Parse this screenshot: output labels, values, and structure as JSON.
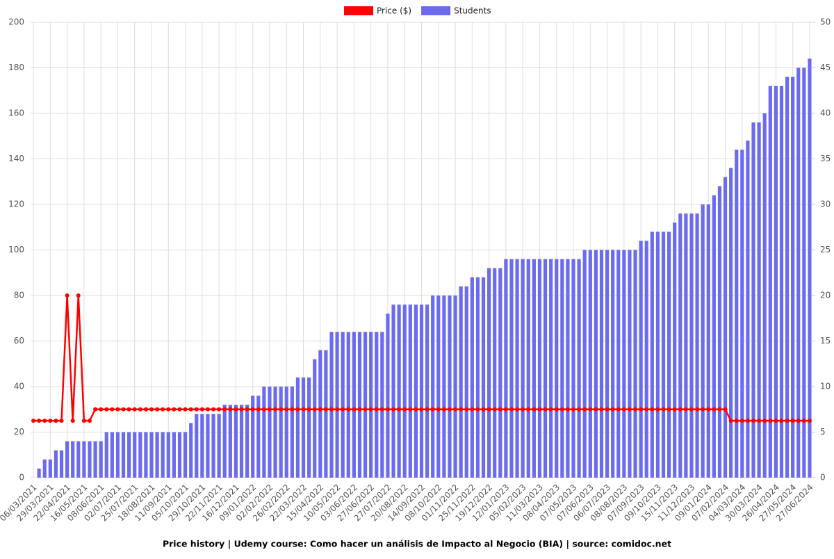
{
  "chart_data": {
    "type": "bar",
    "title": "Price history | Udemy course: Como hacer un análisis de Impacto al Negocio (BIA) | source: comidoc.net",
    "categories": [
      "06/03/2021",
      null,
      null,
      "29/03/2021",
      null,
      null,
      "22/04/2021",
      null,
      null,
      "16/05/2021",
      null,
      null,
      "08/06/2021",
      null,
      null,
      "02/07/2021",
      null,
      null,
      "25/07/2021",
      null,
      null,
      "18/08/2021",
      null,
      null,
      "11/09/2021",
      null,
      null,
      "05/10/2021",
      null,
      null,
      "29/10/2021",
      null,
      null,
      "22/11/2021",
      null,
      null,
      "16/12/2021",
      null,
      null,
      "09/01/2022",
      null,
      null,
      "02/02/2022",
      null,
      null,
      "26/02/2022",
      null,
      null,
      "22/03/2022",
      null,
      null,
      "15/04/2022",
      null,
      null,
      "10/05/2022",
      null,
      null,
      "03/06/2022",
      null,
      null,
      "27/06/2022",
      null,
      null,
      "27/07/2022",
      null,
      null,
      "20/08/2022",
      null,
      null,
      "14/09/2022",
      null,
      null,
      "08/10/2022",
      null,
      null,
      "01/11/2022",
      null,
      null,
      "25/11/2022",
      null,
      null,
      "19/12/2022",
      null,
      null,
      "12/01/2023",
      null,
      null,
      "05/02/2023",
      null,
      null,
      "11/03/2023",
      null,
      null,
      "08/04/2023",
      null,
      null,
      "07/05/2023",
      null,
      null,
      "07/06/2023",
      null,
      null,
      "06/07/2023",
      null,
      null,
      "08/08/2023",
      null,
      null,
      "07/09/2023",
      null,
      null,
      "09/10/2023",
      null,
      null,
      "15/11/2023",
      null,
      null,
      "11/12/2023",
      null,
      null,
      "09/01/2024",
      null,
      null,
      "07/02/2024",
      null,
      null,
      "04/03/2024",
      null,
      null,
      "30/03/2024",
      null,
      null,
      "26/04/2024",
      null,
      null,
      "27/05/2024",
      null,
      null,
      "27/06/2024"
    ],
    "series": [
      {
        "name": "Price ($)",
        "type": "line",
        "color": "#ff0000",
        "values": [
          25,
          25,
          25,
          25,
          25,
          25,
          80,
          25,
          80,
          25,
          25,
          30,
          30,
          30,
          30,
          30,
          30,
          30,
          30,
          30,
          30,
          30,
          30,
          30,
          30,
          30,
          30,
          30,
          30,
          30,
          30,
          30,
          30,
          30,
          30,
          30,
          30,
          30,
          30,
          30,
          30,
          30,
          30,
          30,
          30,
          30,
          30,
          30,
          30,
          30,
          30,
          30,
          30,
          30,
          30,
          30,
          30,
          30,
          30,
          30,
          30,
          30,
          30,
          30,
          30,
          30,
          30,
          30,
          30,
          30,
          30,
          30,
          30,
          30,
          30,
          30,
          30,
          30,
          30,
          30,
          30,
          30,
          30,
          30,
          30,
          30,
          30,
          30,
          30,
          30,
          30,
          30,
          30,
          30,
          30,
          30,
          30,
          30,
          30,
          30,
          30,
          30,
          30,
          30,
          30,
          30,
          30,
          30,
          30,
          30,
          30,
          30,
          30,
          30,
          30,
          30,
          30,
          30,
          30,
          30,
          30,
          30,
          30,
          30,
          25,
          25,
          25,
          25,
          25,
          25,
          25,
          25,
          25,
          25,
          25,
          25,
          25,
          25,
          25
        ]
      },
      {
        "name": "Students",
        "type": "bar",
        "axis": "y2",
        "color": "#6b6bef",
        "values": [
          0,
          1,
          2,
          2,
          3,
          3,
          4,
          4,
          4,
          4,
          4,
          4,
          4,
          5,
          5,
          5,
          5,
          5,
          5,
          5,
          5,
          5,
          5,
          5,
          5,
          5,
          5,
          5,
          6,
          7,
          7,
          7,
          7,
          7,
          8,
          8,
          8,
          8,
          8,
          9,
          9,
          10,
          10,
          10,
          10,
          10,
          10,
          11,
          11,
          11,
          13,
          14,
          14,
          16,
          16,
          16,
          16,
          16,
          16,
          16,
          16,
          16,
          16,
          18,
          19,
          19,
          19,
          19,
          19,
          19,
          19,
          20,
          20,
          20,
          20,
          20,
          21,
          21,
          22,
          22,
          22,
          23,
          23,
          23,
          24,
          24,
          24,
          24,
          24,
          24,
          24,
          24,
          24,
          24,
          24,
          24,
          24,
          24,
          25,
          25,
          25,
          25,
          25,
          25,
          25,
          25,
          25,
          25,
          26,
          26,
          27,
          27,
          27,
          27,
          28,
          29,
          29,
          29,
          29,
          30,
          30,
          31,
          32,
          33,
          34,
          36,
          36,
          37,
          39,
          39,
          40,
          43,
          43,
          43,
          44,
          44,
          45,
          45,
          46
        ]
      }
    ],
    "ylim": [
      0,
      200
    ],
    "yticks": [
      0,
      20,
      40,
      60,
      80,
      100,
      120,
      140,
      160,
      180,
      200
    ],
    "y2lim": [
      0,
      50
    ],
    "y2ticks": [
      0,
      5,
      10,
      15,
      20,
      25,
      30,
      35,
      40,
      45,
      50
    ],
    "grid": true,
    "legend": "top"
  }
}
